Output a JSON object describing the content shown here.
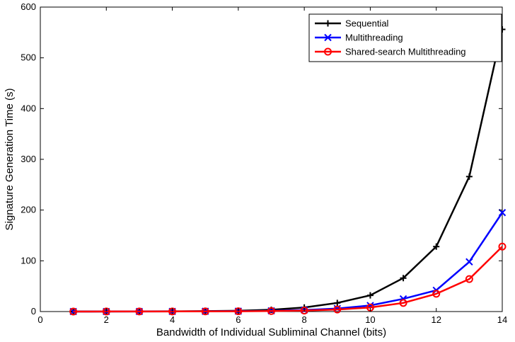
{
  "chart_data": {
    "type": "line",
    "title": "",
    "xlabel": "Bandwidth of Individual Subliminal Channel (bits)",
    "ylabel": "Signature Generation Time (s)",
    "xlim": [
      0,
      14
    ],
    "ylim": [
      0,
      600
    ],
    "xticks": [
      "0",
      "2",
      "4",
      "6",
      "8",
      "10",
      "12",
      "14"
    ],
    "yticks": [
      "0",
      "100",
      "200",
      "300",
      "400",
      "500",
      "600"
    ],
    "grid": false,
    "legend_position": "top-right",
    "x": [
      1,
      2,
      3,
      4,
      5,
      6,
      7,
      8,
      9,
      10,
      11,
      12,
      13,
      14
    ],
    "series": [
      {
        "name": "Sequential",
        "color": "#000000",
        "marker": "plus",
        "values": [
          0.1,
          0.2,
          0.3,
          0.5,
          0.8,
          1.5,
          3.5,
          8,
          17,
          32,
          66,
          128,
          266,
          556
        ]
      },
      {
        "name": "Multithreading",
        "color": "#0000ff",
        "marker": "x",
        "values": [
          0.05,
          0.1,
          0.2,
          0.3,
          0.5,
          0.8,
          1.5,
          3,
          6,
          12,
          25,
          42,
          98,
          195
        ]
      },
      {
        "name": "Shared-search Multithreading",
        "color": "#ff0000",
        "marker": "circle",
        "values": [
          0.05,
          0.1,
          0.15,
          0.25,
          0.4,
          0.6,
          1,
          2,
          4,
          8,
          17,
          35,
          64,
          128
        ]
      }
    ]
  }
}
